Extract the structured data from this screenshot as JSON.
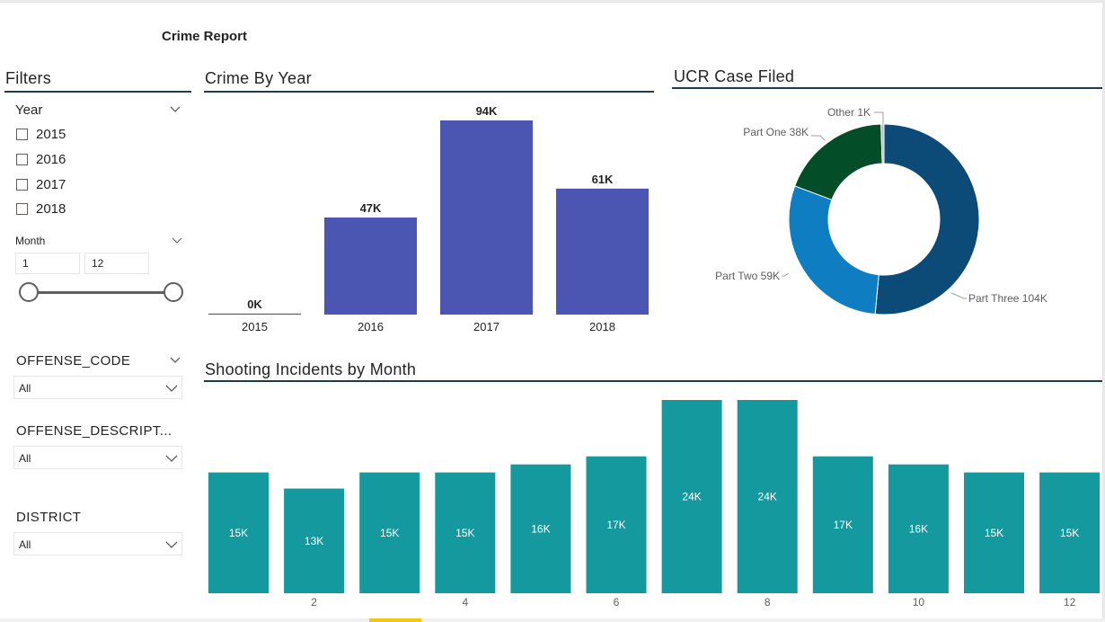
{
  "report": {
    "title": "Crime Report"
  },
  "filters": {
    "title": "Filters",
    "year": {
      "label": "Year",
      "options": [
        {
          "label": "2015",
          "checked": false
        },
        {
          "label": "2016",
          "checked": false
        },
        {
          "label": "2017",
          "checked": false
        },
        {
          "label": "2018",
          "checked": false
        }
      ]
    },
    "month": {
      "label": "Month",
      "min_value": "1",
      "max_value": "12",
      "range_min": 1,
      "range_max": 12
    },
    "offense_code": {
      "label": "OFFENSE_CODE",
      "value": "All"
    },
    "offense_description": {
      "label": "OFFENSE_DESCRIPT...",
      "value": "All"
    },
    "district": {
      "label": "DISTRICT",
      "value": "All"
    }
  },
  "crime_by_year": {
    "title": "Crime By Year"
  },
  "ucr_case_filed": {
    "title": "UCR Case Filed"
  },
  "shooting_by_month": {
    "title": "Shooting Incidents by Month"
  },
  "colors": {
    "year_bar": "#4b55b2",
    "month_bar": "#13999e",
    "part_three": "#0c4a77",
    "part_two": "#0f7dc2",
    "part_one": "#034d28",
    "other": "#b8b8b8"
  },
  "chart_data": [
    {
      "type": "bar",
      "title": "Crime By Year",
      "categories": [
        "2015",
        "2016",
        "2017",
        "2018"
      ],
      "values": [
        0.5,
        47,
        94,
        61
      ],
      "data_labels": [
        "0K",
        "47K",
        "94K",
        "61K"
      ],
      "ylim": [
        0,
        94
      ]
    },
    {
      "type": "pie",
      "style": "donut",
      "title": "UCR Case Filed",
      "labels": [
        "Part Three",
        "Part Two",
        "Part One",
        "Other"
      ],
      "values": [
        104,
        59,
        38,
        1
      ],
      "data_labels": [
        "Part Three 104K",
        "Part Two 59K",
        "Part One 38K",
        "Other 1K"
      ]
    },
    {
      "type": "bar",
      "title": "Shooting Incidents by Month",
      "x": [
        1,
        2,
        3,
        4,
        5,
        6,
        7,
        8,
        9,
        10,
        11,
        12
      ],
      "tick_labels": [
        "",
        "2",
        "",
        "4",
        "",
        "6",
        "",
        "8",
        "",
        "10",
        "",
        "12"
      ],
      "values": [
        15,
        13,
        15,
        15,
        16,
        17,
        24,
        24,
        17,
        16,
        15,
        15
      ],
      "data_labels": [
        "15K",
        "13K",
        "15K",
        "15K",
        "16K",
        "17K",
        "24K",
        "24K",
        "17K",
        "16K",
        "15K",
        "15K"
      ],
      "ylim": [
        0,
        24
      ]
    }
  ]
}
